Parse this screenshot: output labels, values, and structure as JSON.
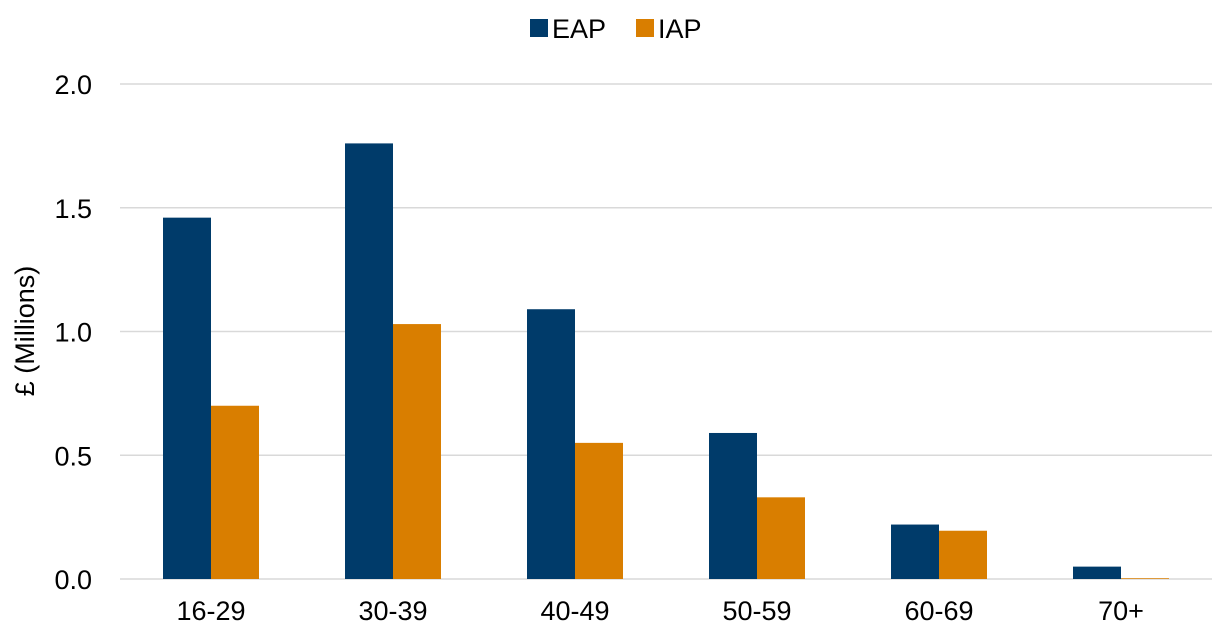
{
  "chart_data": {
    "type": "bar",
    "title": "",
    "xlabel": "",
    "ylabel": "£ (Millions)",
    "categories": [
      "16-29",
      "30-39",
      "40-49",
      "50-59",
      "60-69",
      "70+"
    ],
    "series": [
      {
        "name": "EAP",
        "color": "#003B6A",
        "values": [
          1.46,
          1.76,
          1.09,
          0.59,
          0.22,
          0.05
        ]
      },
      {
        "name": "IAP",
        "color": "#D97E00",
        "values": [
          0.7,
          1.03,
          0.55,
          0.33,
          0.195,
          0.003
        ]
      }
    ],
    "ylim": [
      0,
      2.0
    ],
    "yticks": [
      "0.0",
      "0.5",
      "1.0",
      "1.5",
      "2.0"
    ],
    "ytick_values": [
      0,
      0.5,
      1.0,
      1.5,
      2.0
    ],
    "grid": true,
    "grid_color": "#D9D9D9",
    "legend": "top-center"
  }
}
